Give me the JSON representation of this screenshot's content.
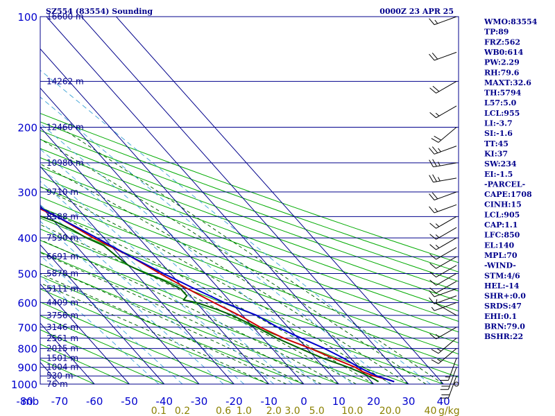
{
  "header": {
    "title_left": "SZ554 (83554) Sounding",
    "title_right": "0000Z 23 APR 25"
  },
  "chart_data": {
    "type": "line",
    "title": "SZ554 (83554) Sounding",
    "pressure_axis": {
      "unit": "mb",
      "ticks": [
        "100",
        "200",
        "300",
        "400",
        "500",
        "600",
        "700",
        "800",
        "900",
        "1000"
      ]
    },
    "temperature_axis": {
      "ticks": [
        "-80",
        "-70",
        "-60",
        "-50",
        "-40",
        "-30",
        "-20",
        "-10",
        "0",
        "10",
        "20",
        "30",
        "40"
      ],
      "range": [
        -80,
        40
      ]
    },
    "mixing_ratio_axis": {
      "unit": "g/kg",
      "ticks": [
        "0.1",
        "0.2",
        "0.6",
        "1.0",
        "2.0",
        "3.0",
        "5.0",
        "10.0",
        "20.0",
        "40"
      ]
    },
    "height_labels": [
      {
        "p": 100,
        "label": "16600 m"
      },
      {
        "p": 150,
        "label": "14262 m"
      },
      {
        "p": 200,
        "label": "12460 m"
      },
      {
        "p": 250,
        "label": "10980 m"
      },
      {
        "p": 300,
        "label": "9710 m"
      },
      {
        "p": 350,
        "label": "8588 m"
      },
      {
        "p": 400,
        "label": "7590 m"
      },
      {
        "p": 450,
        "label": "6691 m"
      },
      {
        "p": 500,
        "label": "5870 m"
      },
      {
        "p": 550,
        "label": "5111 m"
      },
      {
        "p": 600,
        "label": "4409 m"
      },
      {
        "p": 650,
        "label": "3756 m"
      },
      {
        "p": 700,
        "label": "3146 m"
      },
      {
        "p": 750,
        "label": "2561 m"
      },
      {
        "p": 800,
        "label": "2015 m"
      },
      {
        "p": 850,
        "label": "1501 m"
      },
      {
        "p": 900,
        "label": "1004 m"
      },
      {
        "p": 950,
        "label": "530 m"
      },
      {
        "p": 1000,
        "label": "76 m"
      }
    ],
    "series": [
      {
        "color": "#cc0000",
        "points": [
          [
            985,
            26.5
          ],
          [
            970,
            25
          ],
          [
            950,
            22
          ],
          [
            925,
            20
          ],
          [
            900,
            19
          ],
          [
            850,
            15
          ],
          [
            800,
            11
          ],
          [
            750,
            6
          ],
          [
            700,
            2
          ],
          [
            650,
            -1
          ],
          [
            600,
            -5
          ],
          [
            550,
            -9
          ],
          [
            500,
            -13
          ],
          [
            450,
            -17
          ],
          [
            400,
            -23
          ],
          [
            350,
            -28
          ],
          [
            300,
            -37
          ],
          [
            250,
            -47
          ],
          [
            200,
            -59
          ],
          [
            150,
            -72
          ],
          [
            112,
            -85
          ]
        ]
      },
      {
        "color": "#006400",
        "points": [
          [
            985,
            22
          ],
          [
            970,
            21.5
          ],
          [
            950,
            20.5
          ],
          [
            925,
            19
          ],
          [
            900,
            17
          ],
          [
            850,
            12
          ],
          [
            800,
            8
          ],
          [
            750,
            4
          ],
          [
            700,
            1
          ],
          [
            650,
            -3
          ],
          [
            625,
            -6
          ],
          [
            600,
            -10
          ],
          [
            590,
            -13
          ],
          [
            575,
            -11
          ],
          [
            550,
            -11
          ],
          [
            520,
            -14
          ],
          [
            500,
            -17
          ],
          [
            475,
            -20
          ],
          [
            450,
            -21
          ],
          [
            420,
            -22
          ],
          [
            400,
            -25
          ],
          [
            380,
            -27
          ],
          [
            360,
            -30
          ],
          [
            340,
            -35
          ],
          [
            320,
            -38
          ],
          [
            300,
            -41
          ],
          [
            290,
            -45
          ],
          [
            280,
            -50
          ],
          [
            265,
            -50
          ],
          [
            250,
            -56
          ],
          [
            235,
            -57
          ],
          [
            220,
            -62
          ],
          [
            205,
            -63
          ],
          [
            195,
            -68
          ],
          [
            180,
            -71
          ],
          [
            165,
            -77
          ],
          [
            150,
            -82
          ],
          [
            130,
            -88
          ],
          [
            112,
            -95
          ]
        ]
      },
      {
        "color": "#0000cc",
        "points": [
          [
            985,
            26.5
          ],
          [
            950,
            23
          ],
          [
            900,
            20
          ],
          [
            850,
            18
          ],
          [
            800,
            15
          ],
          [
            750,
            11
          ],
          [
            700,
            7
          ],
          [
            650,
            4
          ],
          [
            600,
            -2
          ],
          [
            550,
            -7
          ],
          [
            500,
            -12
          ],
          [
            450,
            -17
          ],
          [
            400,
            -22
          ],
          [
            350,
            -28
          ],
          [
            300,
            -35
          ],
          [
            250,
            -44
          ],
          [
            200,
            -56
          ],
          [
            150,
            -70
          ],
          [
            112,
            -83
          ]
        ]
      }
    ],
    "wind_barbs": [
      {
        "p": 100,
        "dir": 250,
        "spd": 15
      },
      {
        "p": 125,
        "dir": 250,
        "spd": 20
      },
      {
        "p": 150,
        "dir": 240,
        "spd": 20
      },
      {
        "p": 175,
        "dir": 240,
        "spd": 15
      },
      {
        "p": 200,
        "dir": 230,
        "spd": 20
      },
      {
        "p": 225,
        "dir": 250,
        "spd": 25
      },
      {
        "p": 250,
        "dir": 260,
        "spd": 25
      },
      {
        "p": 275,
        "dir": 260,
        "spd": 25
      },
      {
        "p": 300,
        "dir": 250,
        "spd": 20
      },
      {
        "p": 325,
        "dir": 250,
        "spd": 15
      },
      {
        "p": 350,
        "dir": 240,
        "spd": 15
      },
      {
        "p": 375,
        "dir": 240,
        "spd": 15
      },
      {
        "p": 400,
        "dir": 240,
        "spd": 15
      },
      {
        "p": 425,
        "dir": 240,
        "spd": 10
      },
      {
        "p": 450,
        "dir": 240,
        "spd": 10
      },
      {
        "p": 475,
        "dir": 240,
        "spd": 10
      },
      {
        "p": 500,
        "dir": 240,
        "spd": 10
      },
      {
        "p": 525,
        "dir": 240,
        "spd": 10
      },
      {
        "p": 550,
        "dir": 250,
        "spd": 10
      },
      {
        "p": 575,
        "dir": 250,
        "spd": 10
      },
      {
        "p": 600,
        "dir": 250,
        "spd": 5
      },
      {
        "p": 650,
        "dir": 300,
        "spd": 5
      },
      {
        "p": 700,
        "dir": 240,
        "spd": 15
      },
      {
        "p": 750,
        "dir": 230,
        "spd": 15
      },
      {
        "p": 800,
        "dir": 230,
        "spd": 15
      },
      {
        "p": 850,
        "dir": 200,
        "spd": 15
      },
      {
        "p": 900,
        "dir": 200,
        "spd": 20
      },
      {
        "p": 950,
        "dir": 200,
        "spd": 20
      },
      {
        "p": 1000,
        "dir": 0,
        "spd": 0
      }
    ]
  },
  "indices": [
    "WMO:83554",
    "TP:89",
    "FRZ:562",
    "WB0:614",
    "PW:2.29",
    "RH:79.6",
    "MAXT:32.6",
    "TH:5794",
    "L57:5.0",
    "LCL:955",
    "LI:-3.7",
    "SI:-1.6",
    "TT:45",
    "KI:37",
    "SW:234",
    "EI:-1.5",
    "-PARCEL-",
    "CAPE:1708",
    "CINH:15",
    "LCL:905",
    "CAP:1.1",
    "LFC:850",
    "EL:140",
    "MPL:70",
    "-WIND-",
    "STM:4/6",
    "HEL:-14",
    "SHR+:0.0",
    "SRDS:47",
    "EHI:0.1",
    "BRN:79.0",
    "BSHR:22"
  ],
  "colors": {
    "isobar": "#00008b",
    "isotherm": "#00008b",
    "dry_adiabat": "#00aa00",
    "moist_adiabat": "#006400",
    "mixing_ratio": "#4aa8d8"
  }
}
